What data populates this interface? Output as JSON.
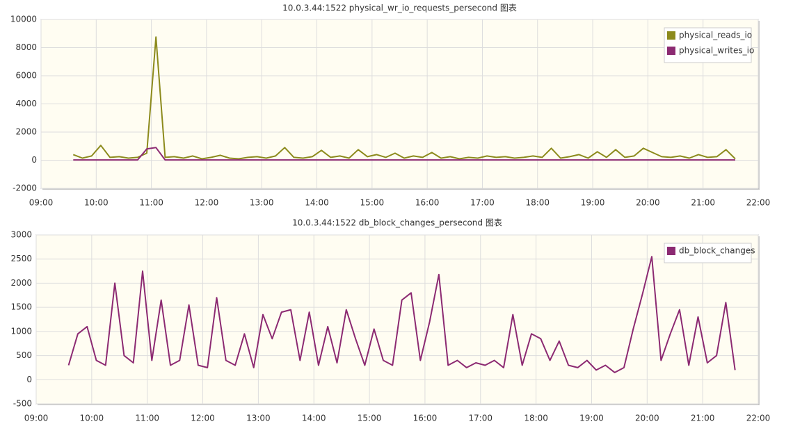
{
  "chart_data": [
    {
      "type": "line",
      "title": "10.0.3.44:1522 physical_wr_io_requests_persecond 图表",
      "x": [
        "09:35",
        "09:45",
        "09:55",
        "10:05",
        "10:15",
        "10:25",
        "10:35",
        "10:45",
        "10:55",
        "11:05",
        "11:15",
        "11:25",
        "11:35",
        "11:45",
        "11:55",
        "12:05",
        "12:15",
        "12:25",
        "12:35",
        "12:45",
        "12:55",
        "13:05",
        "13:15",
        "13:25",
        "13:35",
        "13:45",
        "13:55",
        "14:05",
        "14:15",
        "14:25",
        "14:35",
        "14:45",
        "14:55",
        "15:05",
        "15:15",
        "15:25",
        "15:35",
        "15:45",
        "15:55",
        "16:05",
        "16:15",
        "16:25",
        "16:35",
        "16:45",
        "16:55",
        "17:05",
        "17:15",
        "17:25",
        "17:35",
        "17:45",
        "17:55",
        "18:05",
        "18:15",
        "18:25",
        "18:35",
        "18:45",
        "18:55",
        "19:05",
        "19:15",
        "19:25",
        "19:35",
        "19:45",
        "19:55",
        "20:05",
        "20:15",
        "20:25",
        "20:35",
        "20:45",
        "20:55",
        "21:05",
        "21:15",
        "21:25",
        "21:35"
      ],
      "series": [
        {
          "name": "physical_reads_io",
          "color": "#8c8a1c",
          "values": [
            400,
            150,
            300,
            1050,
            200,
            250,
            150,
            200,
            500,
            8750,
            200,
            250,
            150,
            300,
            100,
            200,
            350,
            150,
            100,
            200,
            250,
            150,
            300,
            900,
            200,
            150,
            250,
            700,
            200,
            300,
            150,
            750,
            250,
            400,
            200,
            500,
            150,
            300,
            200,
            550,
            150,
            250,
            100,
            200,
            150,
            300,
            200,
            250,
            150,
            200,
            300,
            200,
            850,
            150,
            250,
            400,
            150,
            600,
            200,
            750,
            200,
            300,
            850,
            550,
            250,
            200,
            300,
            150,
            400,
            200,
            250,
            750,
            100
          ]
        },
        {
          "name": "physical_writes_io",
          "color": "#8c2a72",
          "values": [
            20,
            20,
            20,
            20,
            20,
            20,
            20,
            20,
            800,
            900,
            20,
            20,
            20,
            20,
            20,
            20,
            20,
            20,
            20,
            20,
            20,
            20,
            20,
            20,
            20,
            20,
            20,
            20,
            20,
            20,
            20,
            20,
            20,
            20,
            20,
            20,
            20,
            20,
            20,
            20,
            20,
            20,
            20,
            20,
            20,
            20,
            20,
            20,
            20,
            20,
            20,
            20,
            20,
            20,
            20,
            20,
            20,
            20,
            20,
            20,
            20,
            20,
            20,
            20,
            20,
            20,
            20,
            20,
            20,
            20,
            20,
            20,
            20
          ]
        }
      ],
      "xlim": [
        "09:00",
        "22:00"
      ],
      "xticks": [
        "09:00",
        "10:00",
        "11:00",
        "12:00",
        "13:00",
        "14:00",
        "15:00",
        "16:00",
        "17:00",
        "18:00",
        "19:00",
        "20:00",
        "21:00",
        "22:00"
      ],
      "ylim": [
        -2000,
        10000
      ],
      "yticks": [
        -2000,
        0,
        2000,
        4000,
        6000,
        8000,
        10000
      ],
      "grid": true,
      "legend": "upper right"
    },
    {
      "type": "line",
      "title": "10.0.3.44:1522 db_block_changes_persecond 图表",
      "x": [
        "09:35",
        "09:45",
        "09:55",
        "10:05",
        "10:15",
        "10:25",
        "10:35",
        "10:45",
        "10:55",
        "11:05",
        "11:15",
        "11:25",
        "11:35",
        "11:45",
        "11:55",
        "12:05",
        "12:15",
        "12:25",
        "12:35",
        "12:45",
        "12:55",
        "13:05",
        "13:15",
        "13:25",
        "13:35",
        "13:45",
        "13:55",
        "14:05",
        "14:15",
        "14:25",
        "14:35",
        "14:45",
        "14:55",
        "15:05",
        "15:15",
        "15:25",
        "15:35",
        "15:45",
        "15:55",
        "16:05",
        "16:15",
        "16:25",
        "16:35",
        "16:45",
        "16:55",
        "17:05",
        "17:15",
        "17:25",
        "17:35",
        "17:45",
        "17:55",
        "18:05",
        "18:15",
        "18:25",
        "18:35",
        "18:45",
        "18:55",
        "19:05",
        "19:15",
        "19:25",
        "19:35",
        "19:45",
        "19:55",
        "20:05",
        "20:15",
        "20:25",
        "20:35",
        "20:45",
        "20:55",
        "21:05",
        "21:15",
        "21:25",
        "21:35"
      ],
      "series": [
        {
          "name": "db_block_changes",
          "color": "#8c2a72",
          "values": [
            300,
            950,
            1100,
            400,
            300,
            2000,
            500,
            350,
            2250,
            400,
            1650,
            300,
            400,
            1550,
            300,
            250,
            1700,
            400,
            300,
            950,
            250,
            1350,
            850,
            1400,
            1450,
            400,
            1400,
            300,
            1100,
            350,
            1450,
            850,
            300,
            1050,
            400,
            300,
            1650,
            1800,
            400,
            1200,
            2180,
            300,
            400,
            250,
            350,
            300,
            400,
            250,
            1350,
            300,
            950,
            850,
            400,
            800,
            300,
            250,
            400,
            200,
            300,
            150,
            250,
            1050,
            1780,
            2550,
            400,
            950,
            1450,
            300,
            1300,
            350,
            500,
            1600,
            200
          ]
        }
      ],
      "xlim": [
        "09:00",
        "22:00"
      ],
      "xticks": [
        "09:00",
        "10:00",
        "11:00",
        "12:00",
        "13:00",
        "14:00",
        "15:00",
        "16:00",
        "17:00",
        "18:00",
        "19:00",
        "20:00",
        "21:00",
        "22:00"
      ],
      "ylim": [
        -500,
        3000
      ],
      "yticks": [
        -500,
        0,
        500,
        1000,
        1500,
        2000,
        2500,
        3000
      ],
      "grid": true,
      "legend": "upper right"
    }
  ]
}
